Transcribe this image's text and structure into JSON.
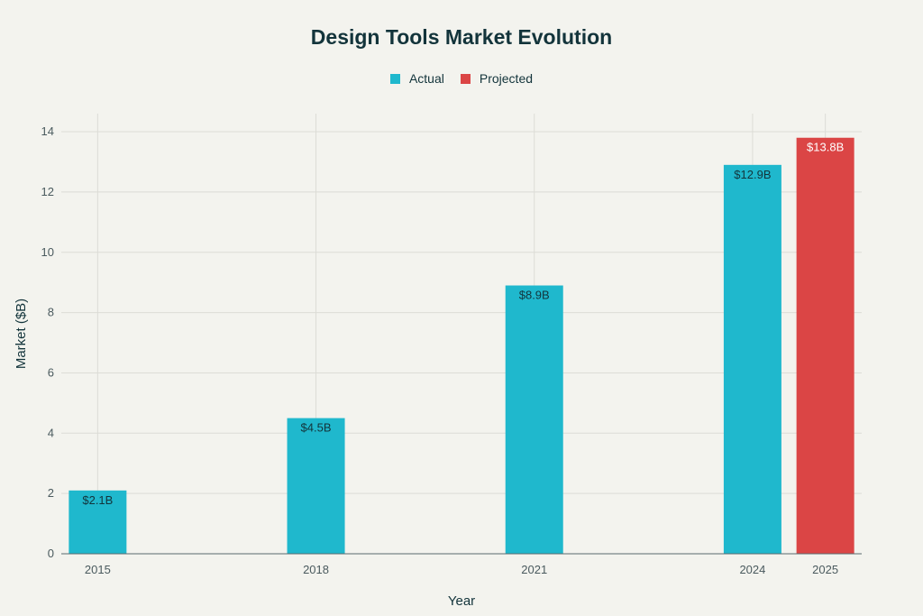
{
  "chart_data": {
    "type": "bar",
    "title": "Design Tools Market Evolution",
    "xlabel": "Year",
    "ylabel": "Market ($B)",
    "x_numeric": [
      2015,
      2018,
      2021,
      2024,
      2025
    ],
    "x_ticks": [
      "2015",
      "2018",
      "2021",
      "2024",
      "2025"
    ],
    "xlim": [
      2014.5,
      2025.5
    ],
    "ylim": [
      0,
      14.6
    ],
    "y_ticks": [
      0,
      2,
      4,
      6,
      8,
      10,
      12,
      14
    ],
    "grid": true,
    "legend_position": "top-center",
    "series": [
      {
        "name": "Actual",
        "color": "#1fb8cd",
        "label_color": "#13343b",
        "points": [
          {
            "x": 2015,
            "y": 2.1,
            "label": "$2.1B"
          },
          {
            "x": 2018,
            "y": 4.5,
            "label": "$4.5B"
          },
          {
            "x": 2021,
            "y": 8.9,
            "label": "$8.9B"
          },
          {
            "x": 2024,
            "y": 12.9,
            "label": "$12.9B"
          }
        ]
      },
      {
        "name": "Projected",
        "color": "#db4545",
        "label_color": "#ffffff",
        "points": [
          {
            "x": 2025,
            "y": 13.8,
            "label": "$13.8B"
          }
        ]
      }
    ]
  }
}
